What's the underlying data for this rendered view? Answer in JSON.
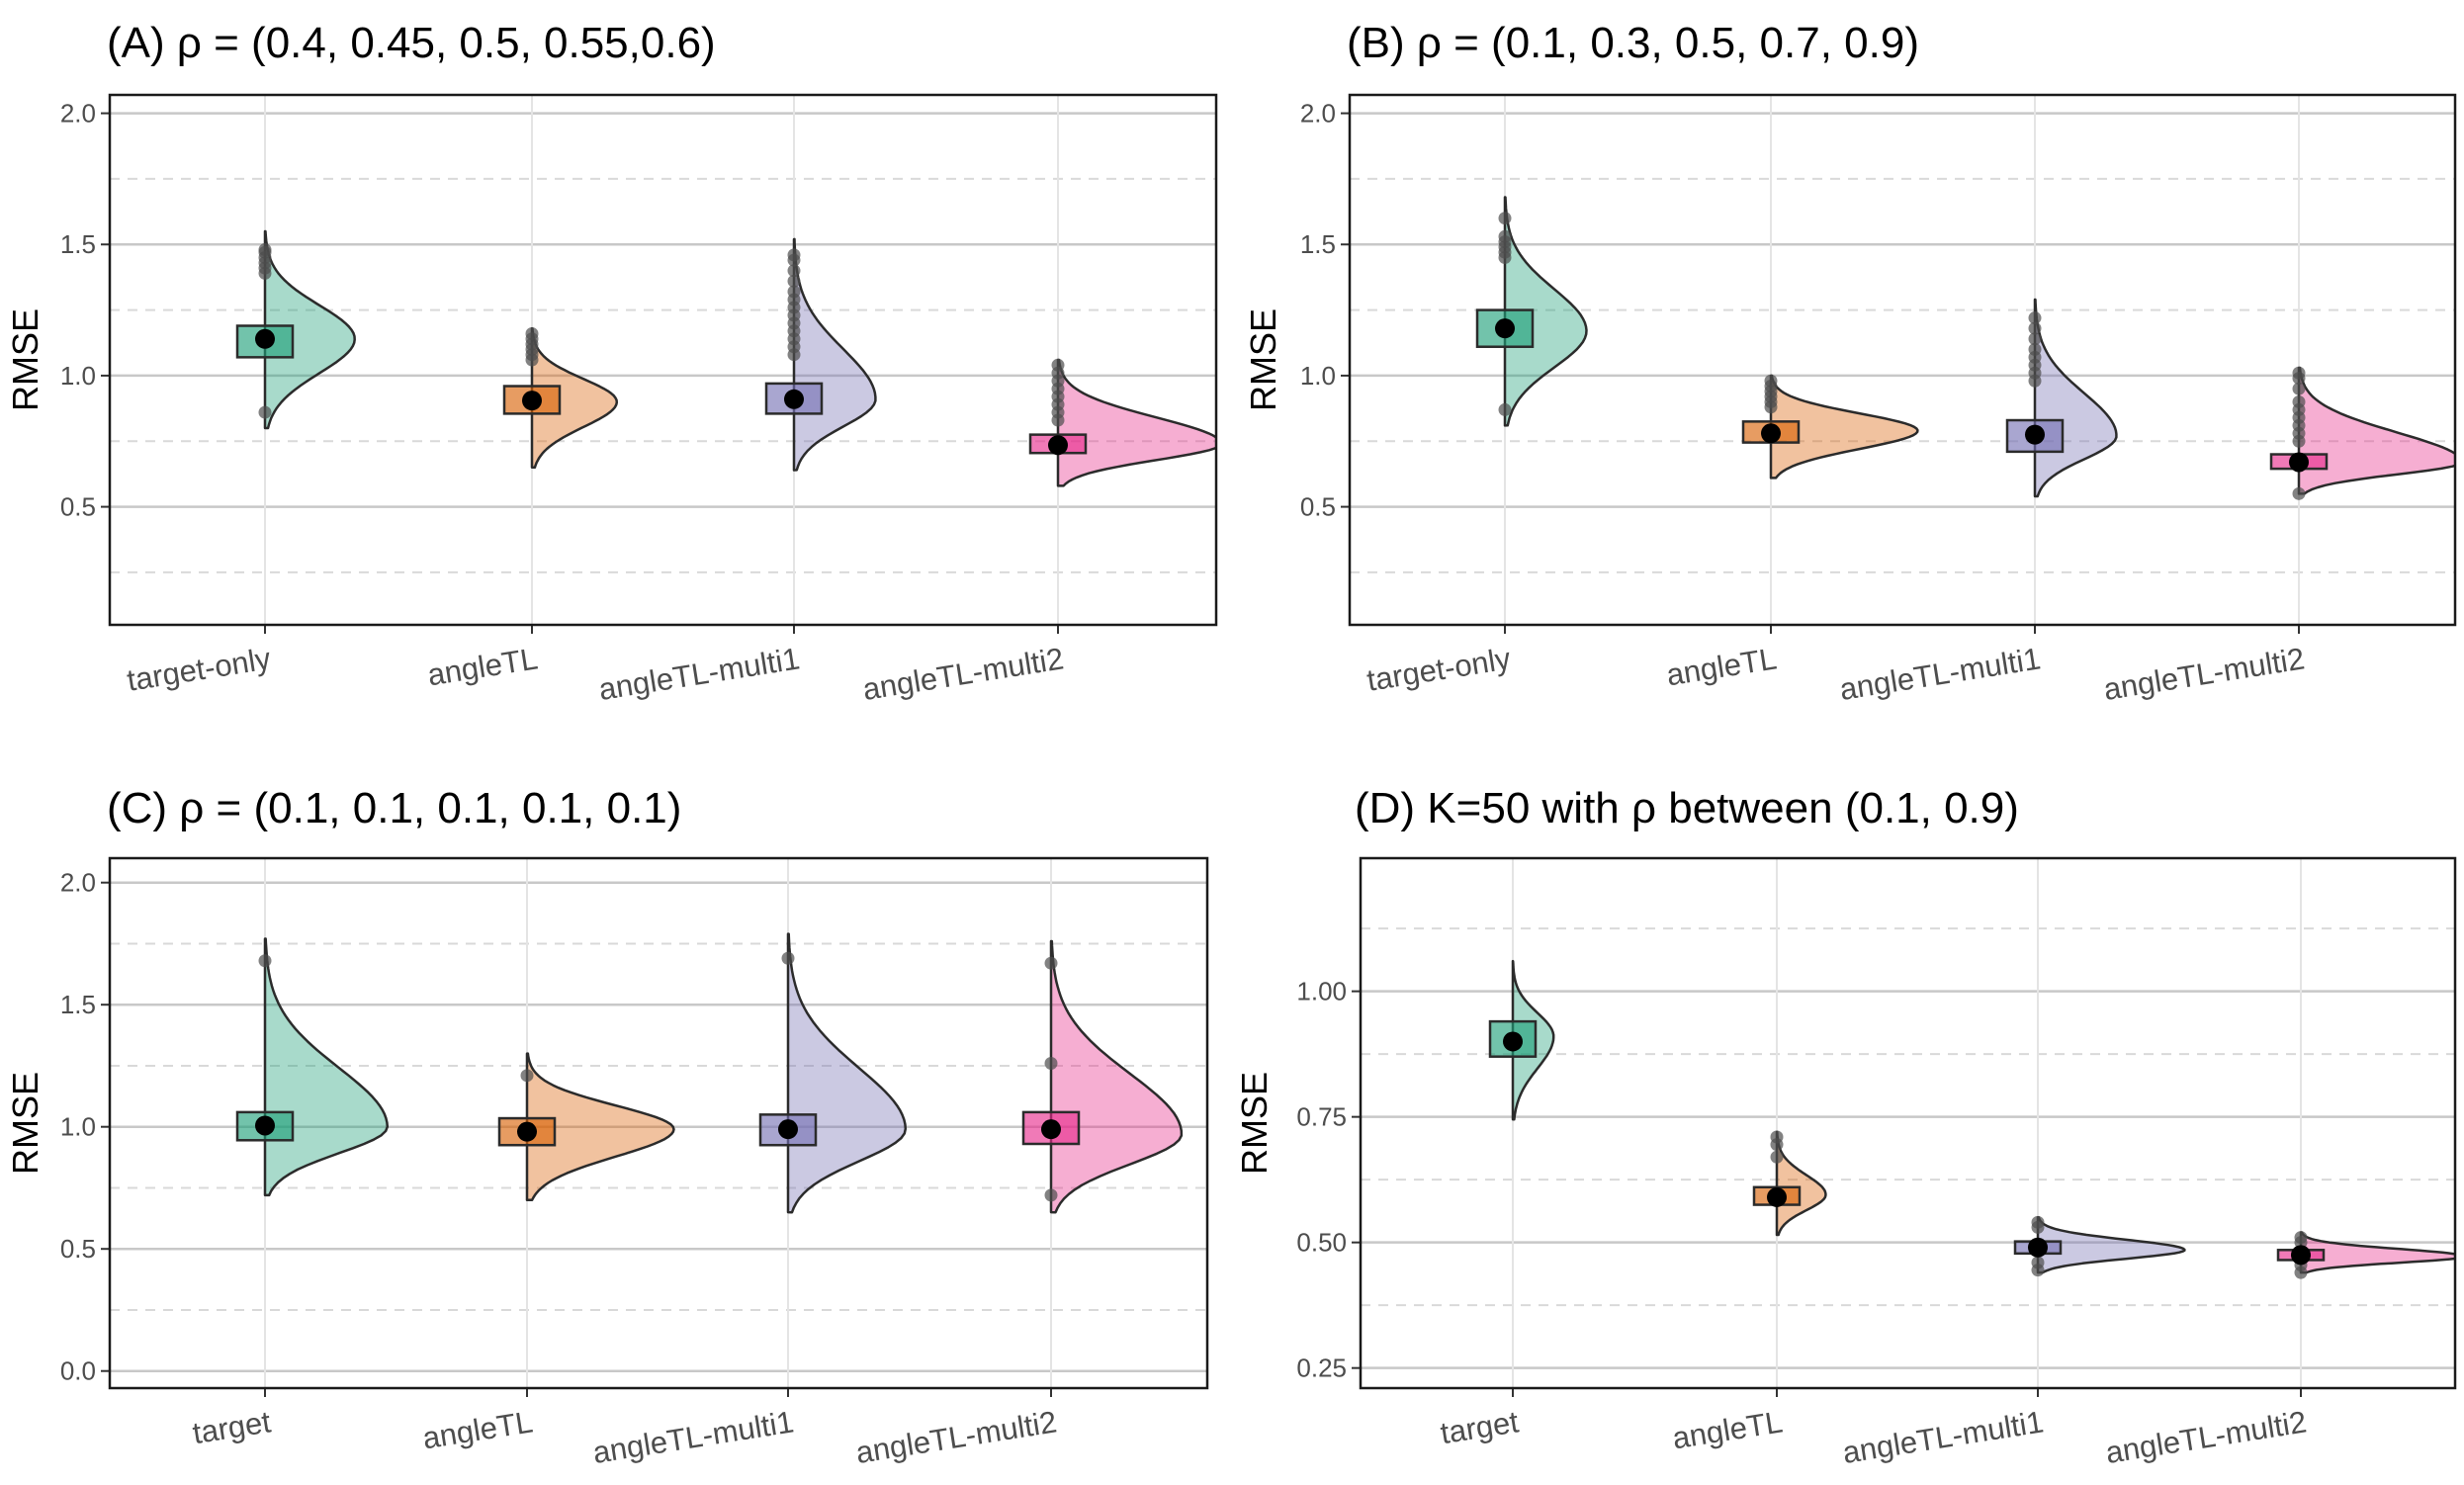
{
  "colors": {
    "target": "#1b9e77",
    "angleTL": "#d95f02",
    "multi1": "#7570b3",
    "multi2": "#e7298a",
    "grid_major": "#c8c8c8",
    "grid_minor": "#d9d9d9",
    "outlier": "#4d4d4d",
    "mean": "#000000"
  },
  "chart_data": [
    {
      "type": "box-violin",
      "title": "(A) ρ = (0.4, 0.45, 0.5, 0.55,0.6)",
      "ylabel": "RMSE",
      "ylim": [
        0.05,
        2.07
      ],
      "yticks": [
        "0.5",
        "1.0",
        "1.5",
        "2.0"
      ],
      "ytick_values": [
        0.5,
        1.0,
        1.5,
        2.0
      ],
      "yminor": [
        0.25,
        0.75,
        1.25,
        1.75
      ],
      "categories": [
        "target-only",
        "angleTL",
        "angleTL-multi1",
        "angleTL-multi2"
      ],
      "series": [
        {
          "color_key": "target",
          "mean": 1.14,
          "q1": 1.07,
          "q3": 1.19,
          "vmin": 0.8,
          "vmax": 1.55,
          "mode": 1.14,
          "width": 0.55,
          "outliers": [
            0.86,
            1.39,
            1.41,
            1.43,
            1.45,
            1.47,
            1.48
          ]
        },
        {
          "color_key": "angleTL",
          "mean": 0.905,
          "q1": 0.855,
          "q3": 0.96,
          "vmin": 0.65,
          "vmax": 1.18,
          "mode": 0.9,
          "width": 0.52,
          "outliers": [
            1.06,
            1.08,
            1.1,
            1.12,
            1.14,
            1.16
          ]
        },
        {
          "color_key": "multi1",
          "mean": 0.91,
          "q1": 0.855,
          "q3": 0.97,
          "vmin": 0.64,
          "vmax": 1.52,
          "mode": 0.91,
          "width": 0.5,
          "outliers": [
            1.08,
            1.11,
            1.14,
            1.17,
            1.2,
            1.23,
            1.26,
            1.29,
            1.32,
            1.36,
            1.4,
            1.44,
            1.46
          ]
        },
        {
          "color_key": "multi2",
          "mean": 0.735,
          "q1": 0.705,
          "q3": 0.775,
          "vmin": 0.58,
          "vmax": 1.06,
          "mode": 0.74,
          "width": 1.0,
          "outliers": [
            0.83,
            0.86,
            0.89,
            0.92,
            0.95,
            0.98,
            1.01,
            1.04
          ]
        }
      ]
    },
    {
      "type": "box-violin",
      "title": "(B) ρ = (0.1, 0.3, 0.5, 0.7, 0.9)",
      "ylabel": "RMSE",
      "ylim": [
        0.05,
        2.07
      ],
      "yticks": [
        "0.5",
        "1.0",
        "1.5",
        "2.0"
      ],
      "ytick_values": [
        0.5,
        1.0,
        1.5,
        2.0
      ],
      "yminor": [
        0.25,
        0.75,
        1.25,
        1.75
      ],
      "categories": [
        "target-only",
        "angleTL",
        "angleTL-multi1",
        "angleTL-multi2"
      ],
      "series": [
        {
          "color_key": "target",
          "mean": 1.18,
          "q1": 1.11,
          "q3": 1.25,
          "vmin": 0.81,
          "vmax": 1.68,
          "mode": 1.17,
          "width": 0.5,
          "outliers": [
            0.87,
            1.45,
            1.47,
            1.49,
            1.51,
            1.53,
            1.6
          ]
        },
        {
          "color_key": "angleTL",
          "mean": 0.78,
          "q1": 0.745,
          "q3": 0.825,
          "vmin": 0.61,
          "vmax": 1.0,
          "mode": 0.79,
          "width": 0.9,
          "outliers": [
            0.88,
            0.9,
            0.92,
            0.94,
            0.96,
            0.98
          ]
        },
        {
          "color_key": "multi1",
          "mean": 0.775,
          "q1": 0.71,
          "q3": 0.83,
          "vmin": 0.54,
          "vmax": 1.29,
          "mode": 0.77,
          "width": 0.5,
          "outliers": [
            0.98,
            1.01,
            1.04,
            1.07,
            1.1,
            1.14,
            1.18,
            1.22
          ]
        },
        {
          "color_key": "multi2",
          "mean": 0.67,
          "q1": 0.645,
          "q3": 0.7,
          "vmin": 0.55,
          "vmax": 1.03,
          "mode": 0.67,
          "width": 1.0,
          "outliers": [
            0.55,
            0.75,
            0.78,
            0.81,
            0.84,
            0.87,
            0.9,
            0.95,
            0.99,
            1.01
          ]
        }
      ]
    },
    {
      "type": "box-violin",
      "title": "(C) ρ = (0.1, 0.1, 0.1, 0.1, 0.1)",
      "ylabel": "RMSE",
      "ylim": [
        -0.07,
        2.1
      ],
      "yticks": [
        "0.0",
        "0.5",
        "1.0",
        "1.5",
        "2.0"
      ],
      "ytick_values": [
        0.0,
        0.5,
        1.0,
        1.5,
        2.0
      ],
      "yminor": [
        0.25,
        0.75,
        1.25,
        1.75
      ],
      "categories": [
        "target",
        "angleTL",
        "angleTL-multi1",
        "angleTL-multi2"
      ],
      "series": [
        {
          "color_key": "target",
          "mean": 1.005,
          "q1": 0.945,
          "q3": 1.06,
          "vmin": 0.72,
          "vmax": 1.77,
          "mode": 1.0,
          "width": 0.75,
          "outliers": [
            1.68
          ]
        },
        {
          "color_key": "angleTL",
          "mean": 0.98,
          "q1": 0.925,
          "q3": 1.035,
          "vmin": 0.7,
          "vmax": 1.3,
          "mode": 0.99,
          "width": 0.9,
          "outliers": [
            1.21
          ]
        },
        {
          "color_key": "multi1",
          "mean": 0.99,
          "q1": 0.925,
          "q3": 1.05,
          "vmin": 0.65,
          "vmax": 1.79,
          "mode": 0.99,
          "width": 0.72,
          "outliers": [
            1.69
          ]
        },
        {
          "color_key": "multi2",
          "mean": 0.99,
          "q1": 0.93,
          "q3": 1.06,
          "vmin": 0.65,
          "vmax": 1.76,
          "mode": 0.97,
          "width": 0.8,
          "outliers": [
            0.72,
            1.26,
            1.67
          ]
        }
      ]
    },
    {
      "type": "box-violin",
      "title": "(D) K=50 with  ρ between (0.1, 0.9)",
      "ylabel": "RMSE",
      "ylim": [
        0.21,
        1.265
      ],
      "yticks": [
        "0.25",
        "0.50",
        "0.75",
        "1.00"
      ],
      "ytick_values": [
        0.25,
        0.5,
        0.75,
        1.0
      ],
      "yminor": [
        0.375,
        0.625,
        0.875,
        1.125
      ],
      "categories": [
        "target",
        "angleTL",
        "angleTL-multi1",
        "angleTL-multi2"
      ],
      "series": [
        {
          "color_key": "target",
          "mean": 0.9,
          "q1": 0.87,
          "q3": 0.94,
          "vmin": 0.745,
          "vmax": 1.06,
          "mode": 0.91,
          "width": 0.25,
          "outliers": []
        },
        {
          "color_key": "angleTL",
          "mean": 0.59,
          "q1": 0.575,
          "q3": 0.61,
          "vmin": 0.515,
          "vmax": 0.72,
          "mode": 0.595,
          "width": 0.3,
          "outliers": [
            0.67,
            0.695,
            0.71
          ]
        },
        {
          "color_key": "multi1",
          "mean": 0.49,
          "q1": 0.478,
          "q3": 0.502,
          "vmin": 0.44,
          "vmax": 0.55,
          "mode": 0.485,
          "width": 0.9,
          "outliers": [
            0.445,
            0.46,
            0.53,
            0.54
          ]
        },
        {
          "color_key": "multi2",
          "mean": 0.475,
          "q1": 0.465,
          "q3": 0.485,
          "vmin": 0.44,
          "vmax": 0.52,
          "mode": 0.472,
          "width": 1.0,
          "outliers": [
            0.44,
            0.455,
            0.5,
            0.51
          ]
        }
      ]
    }
  ]
}
